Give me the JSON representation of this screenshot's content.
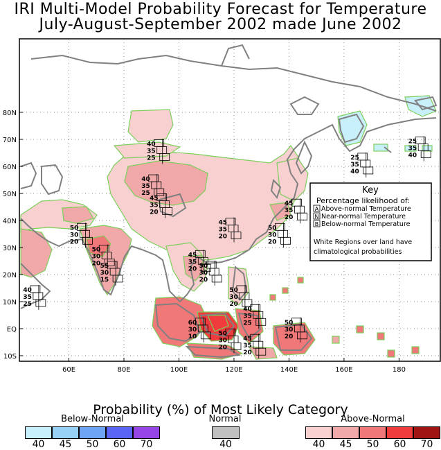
{
  "title_line1": "IRI Multi-Model Probability Forecast for Temperature",
  "title_line2": "July-August-September 2002 made June 2002",
  "lat_labels": [
    "80N",
    "70N",
    "60N",
    "50N",
    "40N",
    "30N",
    "20N",
    "10N",
    "EQ",
    "10S"
  ],
  "lon_labels": [
    "60E",
    "80E",
    "100E",
    "120E",
    "140E",
    "160E",
    "180"
  ],
  "key": {
    "title": "Key",
    "subtitle": "Percentage likelihood of:",
    "items": [
      {
        "letter": "A",
        "text": "Above-normal Temperature"
      },
      {
        "letter": "N",
        "text": "Near-normal Temperature"
      },
      {
        "letter": "B",
        "text": "Below-normal Temperature"
      }
    ],
    "note_line1": "White Regions over land have",
    "note_line2": "climatological probabilities"
  },
  "forecast_boxes": [
    {
      "lon": 92,
      "lat": 64,
      "a": "40",
      "n": "35",
      "b": "25"
    },
    {
      "lon": 90,
      "lat": 51,
      "a": "40",
      "n": "35",
      "b": "25"
    },
    {
      "lon": 93,
      "lat": 44,
      "a": "45",
      "n": "35",
      "b": "20"
    },
    {
      "lon": 142,
      "lat": 42,
      "a": "45",
      "n": "35",
      "b": "20"
    },
    {
      "lon": 64,
      "lat": 33,
      "a": "50",
      "n": "30",
      "b": "20"
    },
    {
      "lon": 118,
      "lat": 35,
      "a": "45",
      "n": "35",
      "b": "20"
    },
    {
      "lon": 136,
      "lat": 33,
      "a": "50",
      "n": "30",
      "b": "20"
    },
    {
      "lon": 72,
      "lat": 25,
      "a": "50",
      "n": "30",
      "b": "20"
    },
    {
      "lon": 75,
      "lat": 19,
      "a": "55",
      "n": "30",
      "b": "15"
    },
    {
      "lon": 107,
      "lat": 23,
      "a": "45",
      "n": "35",
      "b": "20"
    },
    {
      "lon": 111,
      "lat": 19,
      "a": "50",
      "n": "30",
      "b": "20"
    },
    {
      "lon": 47,
      "lat": 10,
      "a": "40",
      "n": "35",
      "b": "25"
    },
    {
      "lon": 122,
      "lat": 10,
      "a": "50",
      "n": "30",
      "b": "20"
    },
    {
      "lon": 127,
      "lat": 3,
      "a": "40",
      "n": "35",
      "b": "25"
    },
    {
      "lon": 107,
      "lat": -2,
      "a": "60",
      "n": "30",
      "b": "10"
    },
    {
      "lon": 142,
      "lat": -2,
      "a": "50",
      "n": "30",
      "b": "20"
    },
    {
      "lon": 118,
      "lat": -6,
      "a": "50",
      "n": "30",
      "b": "20"
    },
    {
      "lon": 127,
      "lat": -8,
      "a": "45",
      "n": "35",
      "b": "20"
    },
    {
      "lon": 166,
      "lat": 59,
      "a": "25",
      "n": "35",
      "b": "40"
    },
    {
      "lon": 187,
      "lat": 65,
      "a": "25",
      "n": "35",
      "b": "40"
    }
  ],
  "legend": {
    "title": "Probability (%) of Most Likely Category",
    "below_label": "Below-Normal",
    "normal_label": "Normal",
    "above_label": "Above-Normal",
    "below": [
      {
        "value": "40",
        "color": "#c8f0fa"
      },
      {
        "value": "45",
        "color": "#96d2f5"
      },
      {
        "value": "50",
        "color": "#6ea5f5"
      },
      {
        "value": "60",
        "color": "#5a64f5"
      },
      {
        "value": "70",
        "color": "#9646e6"
      }
    ],
    "normal": [
      {
        "value": "40",
        "color": "#c0c0c0"
      }
    ],
    "above": [
      {
        "value": "40",
        "color": "#f8d0d0"
      },
      {
        "value": "45",
        "color": "#f0a8a8"
      },
      {
        "value": "50",
        "color": "#f07878"
      },
      {
        "value": "60",
        "color": "#f03c3c"
      },
      {
        "value": "70",
        "color": "#a01414"
      }
    ]
  }
}
